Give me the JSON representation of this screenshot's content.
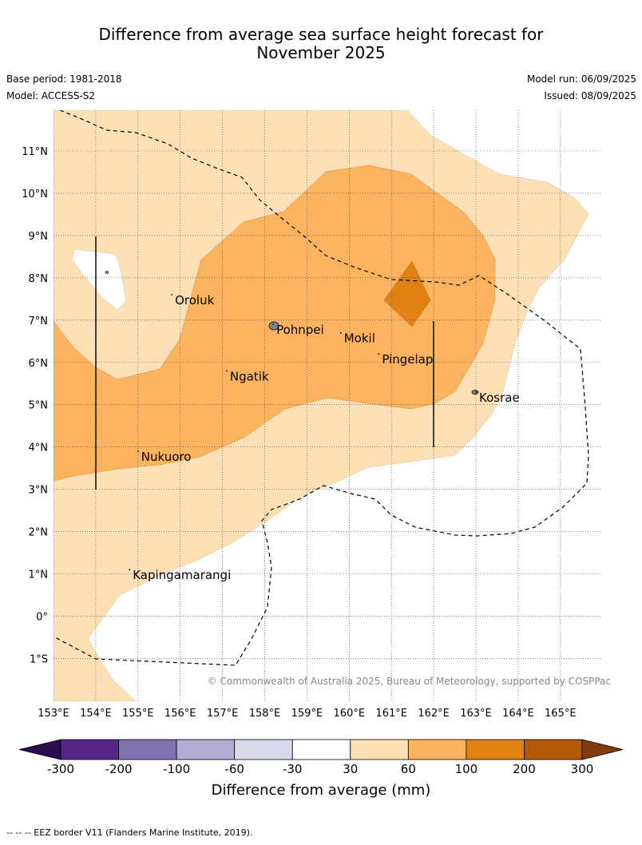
{
  "title_line1": "Difference from average sea surface height forecast for",
  "title_line2": "November 2025",
  "base_period": "Base period: 1981-2018",
  "model": "Model: ACCESS-S2",
  "model_run": "Model run: 06/09/2025",
  "issued": "Issued: 08/09/2025",
  "copyright": "© Commonwealth of Australia 2025, Bureau of Meteorology, supported by COSPPac",
  "footnote": "--  --  -- EEZ border V11 (Flanders Marine Institute, 2019).",
  "lon_ticks": [
    "153°E",
    "154°E",
    "155°E",
    "156°E",
    "157°E",
    "158°E",
    "159°E",
    "160°E",
    "161°E",
    "162°E",
    "163°E",
    "164°E",
    "165°E"
  ],
  "lat_ticks": [
    "11°N",
    "10°N",
    "9°N",
    "8°N",
    "7°N",
    "6°N",
    "5°N",
    "4°N",
    "3°N",
    "2°N",
    "1°N",
    "0°",
    "1°S"
  ],
  "places": [
    {
      "name": "Oroluk",
      "lon": 155.8,
      "lat": 7.6
    },
    {
      "name": "Pohnpei",
      "lon": 158.2,
      "lat": 6.9
    },
    {
      "name": "Mokil",
      "lon": 159.8,
      "lat": 6.7
    },
    {
      "name": "Pingelap",
      "lon": 160.7,
      "lat": 6.2
    },
    {
      "name": "Ngatik",
      "lon": 157.1,
      "lat": 5.8
    },
    {
      "name": "Kosrae",
      "lon": 163.0,
      "lat": 5.3
    },
    {
      "name": "Nukuoro",
      "lon": 155.0,
      "lat": 3.9
    },
    {
      "name": "Kapingamarangi",
      "lon": 154.8,
      "lat": 1.1
    }
  ],
  "colorbar": {
    "label": "Difference from average (mm)",
    "tick_labels": [
      "-300",
      "-200",
      "-100",
      "-60",
      "-30",
      "30",
      "60",
      "100",
      "200",
      "300"
    ],
    "colors": [
      "#2d0b4e",
      "#542788",
      "#8073ac",
      "#b2abd2",
      "#d8daeb",
      "#ffffff",
      "#fee0b6",
      "#fbb35f",
      "#e08214",
      "#b35806",
      "#7f3b08"
    ]
  }
}
